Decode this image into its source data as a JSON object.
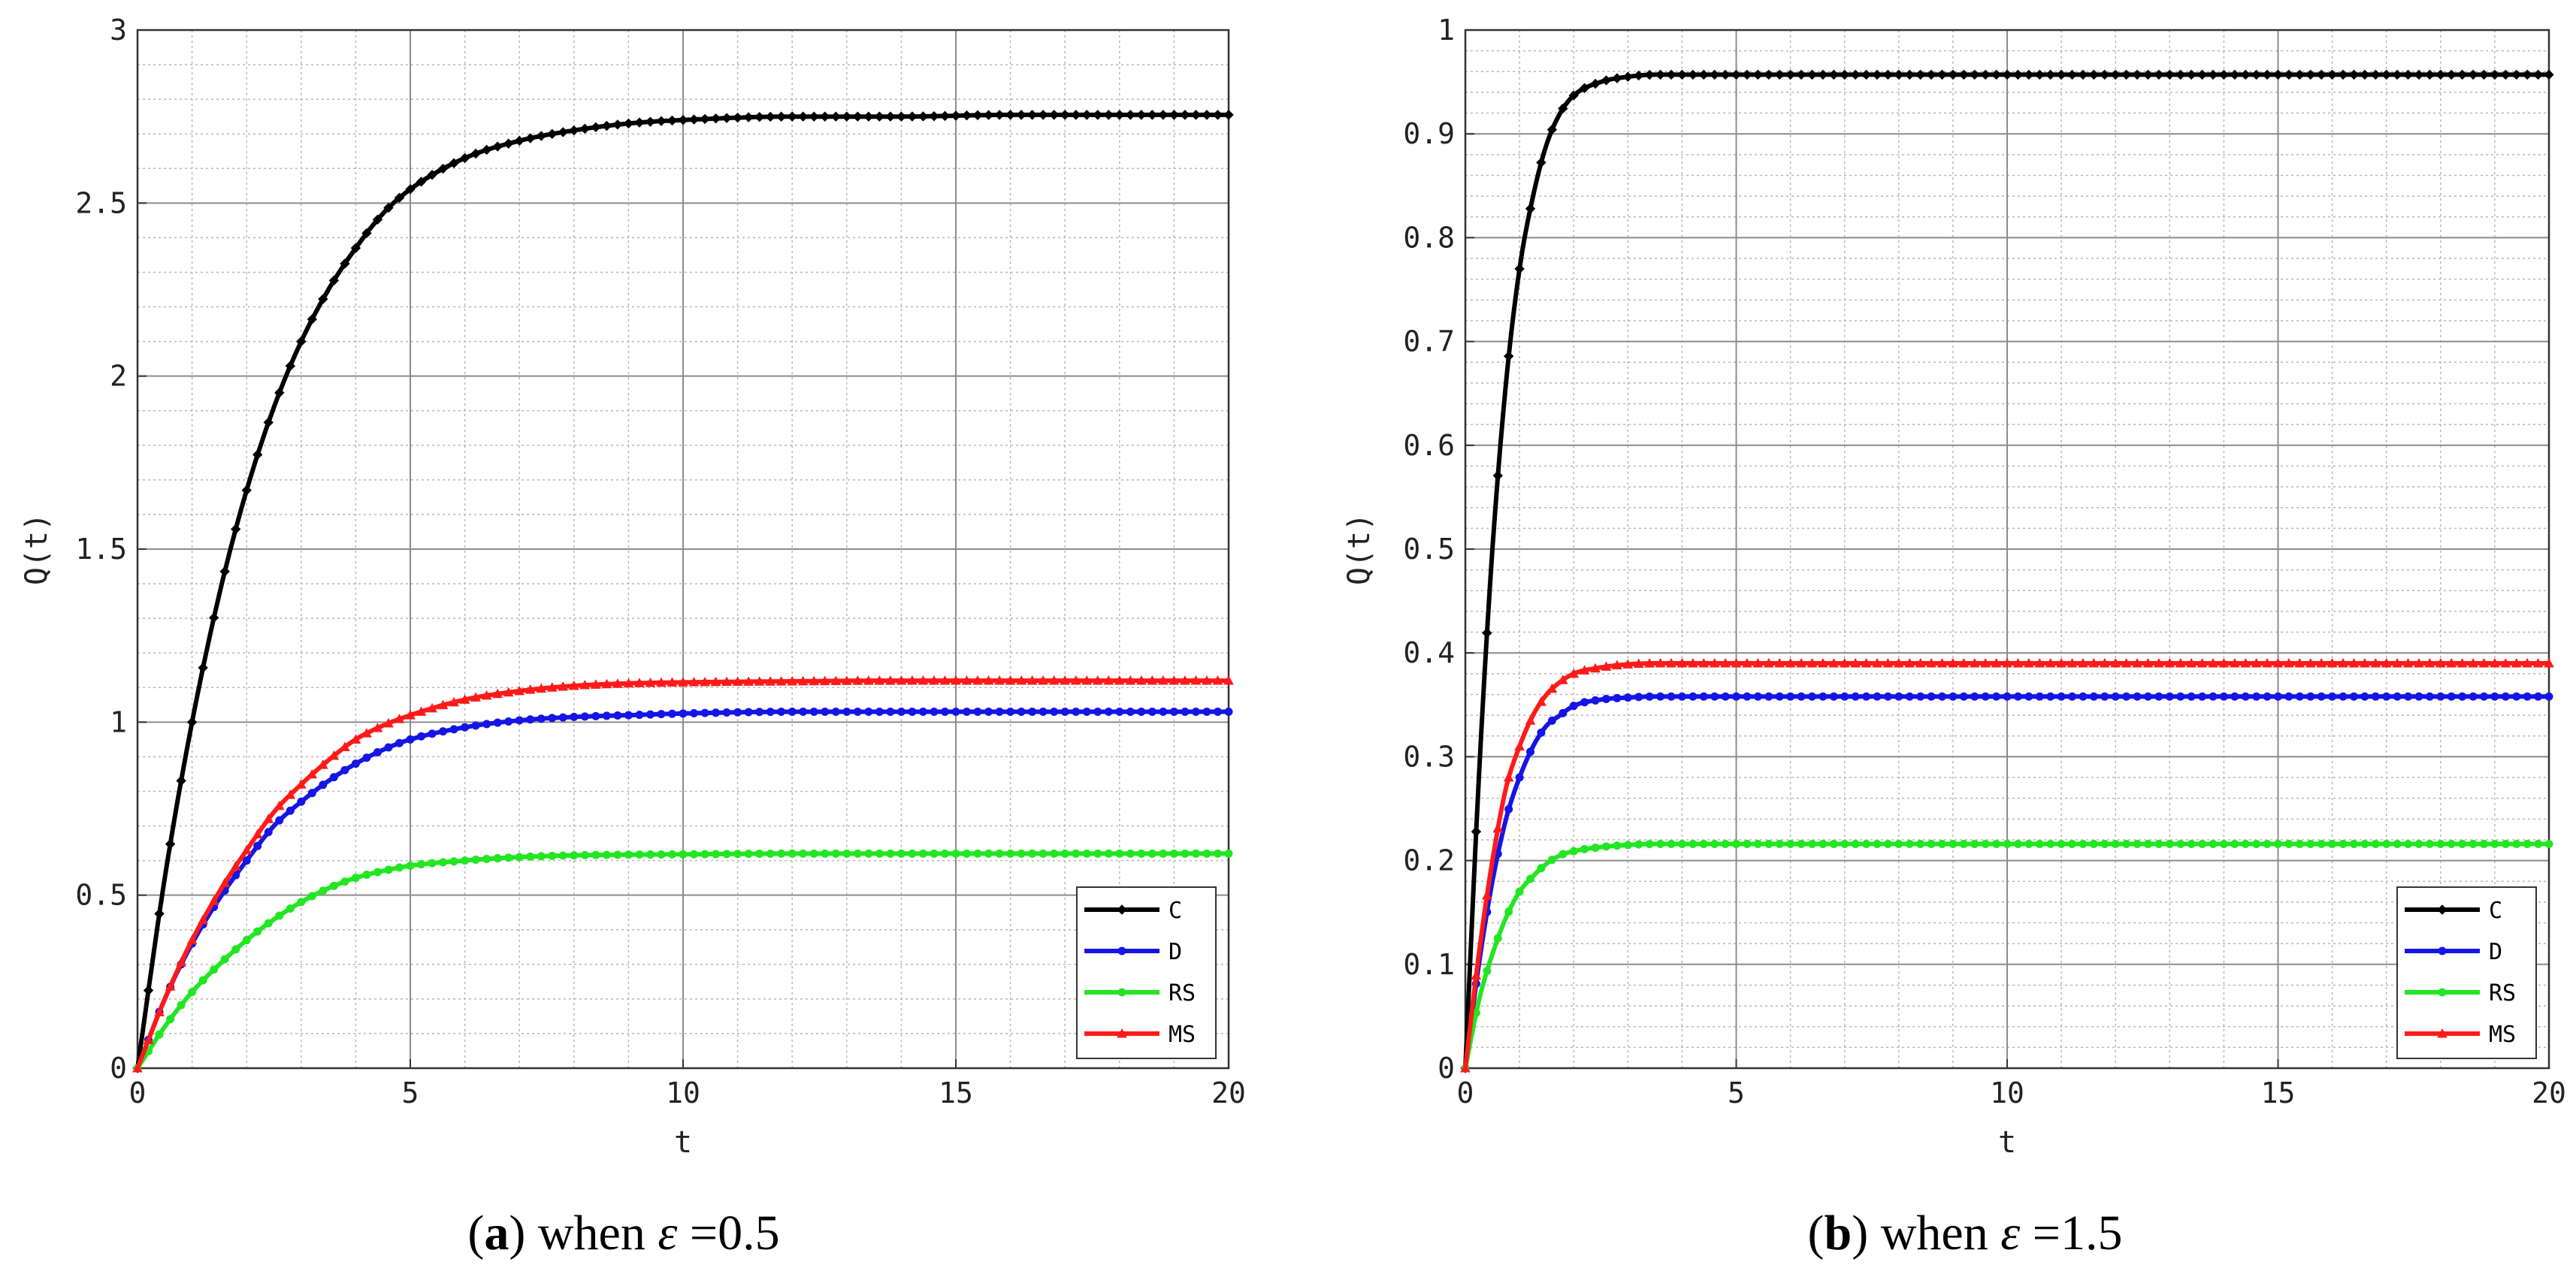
{
  "figure": {
    "captions": [
      {
        "paren_open": "(",
        "letter": "a",
        "paren_close": ")",
        "word": "when",
        "symbol": "ε",
        "value": "=0.5"
      },
      {
        "paren_open": "(",
        "letter": "b",
        "paren_close": ")",
        "word": "when",
        "symbol": "ε",
        "value": "=1.5"
      }
    ]
  },
  "chart_data": [
    {
      "type": "line",
      "title": "",
      "xlabel": "t",
      "ylabel": "Q(t)",
      "xlim": [
        0,
        20
      ],
      "ylim": [
        0,
        3
      ],
      "xticks": [
        0,
        5,
        10,
        15,
        20
      ],
      "xtick_labels": [
        "0",
        "5",
        "10",
        "15",
        "20"
      ],
      "yticks": [
        0,
        0.5,
        1,
        1.5,
        2,
        2.5,
        3
      ],
      "ytick_labels": [
        "0",
        "0.5",
        "1",
        "1.5",
        "2",
        "2.5",
        "3"
      ],
      "grid": true,
      "minor_grid": true,
      "legend_position": "bottom-right",
      "series": [
        {
          "name": "C",
          "color": "#000000",
          "marker": "diamond",
          "x": [
            0,
            0.5,
            1,
            1.5,
            2,
            2.5,
            3,
            3.5,
            4,
            4.5,
            5,
            6,
            7,
            8,
            9,
            10,
            12,
            14,
            16,
            18,
            20
          ],
          "y": [
            0,
            0.55,
            1,
            1.37,
            1.67,
            1.91,
            2.1,
            2.25,
            2.37,
            2.47,
            2.54,
            2.63,
            2.68,
            2.71,
            2.73,
            2.74,
            2.75,
            2.75,
            2.755,
            2.755,
            2.755
          ]
        },
        {
          "name": "D",
          "color": "#1515e6",
          "marker": "circle",
          "x": [
            0,
            0.5,
            1,
            1.5,
            2,
            2.5,
            3,
            3.5,
            4,
            4.5,
            5,
            6,
            7,
            8,
            9,
            10,
            12,
            14,
            16,
            18,
            20
          ],
          "y": [
            0,
            0.2,
            0.36,
            0.49,
            0.6,
            0.7,
            0.77,
            0.83,
            0.88,
            0.92,
            0.95,
            0.985,
            1.005,
            1.015,
            1.02,
            1.025,
            1.03,
            1.03,
            1.03,
            1.03,
            1.03
          ]
        },
        {
          "name": "RS",
          "color": "#22e622",
          "marker": "circle",
          "x": [
            0,
            0.5,
            1,
            1.5,
            2,
            2.5,
            3,
            3.5,
            4,
            4.5,
            5,
            6,
            7,
            8,
            9,
            10,
            12,
            14,
            16,
            18,
            20
          ],
          "y": [
            0,
            0.12,
            0.22,
            0.3,
            0.37,
            0.43,
            0.48,
            0.52,
            0.55,
            0.57,
            0.585,
            0.6,
            0.61,
            0.615,
            0.617,
            0.618,
            0.62,
            0.62,
            0.62,
            0.62,
            0.62
          ]
        },
        {
          "name": "MS",
          "color": "#ff1a1a",
          "marker": "triangle",
          "x": [
            0,
            0.5,
            1,
            1.5,
            2,
            2.5,
            3,
            3.5,
            4,
            4.5,
            5,
            6,
            7,
            8,
            9,
            10,
            12,
            14,
            16,
            18,
            20
          ],
          "y": [
            0,
            0.2,
            0.37,
            0.51,
            0.63,
            0.74,
            0.82,
            0.89,
            0.95,
            0.99,
            1.02,
            1.065,
            1.09,
            1.105,
            1.112,
            1.115,
            1.118,
            1.12,
            1.12,
            1.12,
            1.12
          ]
        }
      ]
    },
    {
      "type": "line",
      "title": "",
      "xlabel": "t",
      "ylabel": "Q(t)",
      "xlim": [
        0,
        20
      ],
      "ylim": [
        0,
        1
      ],
      "xticks": [
        0,
        5,
        10,
        15,
        20
      ],
      "xtick_labels": [
        "0",
        "5",
        "10",
        "15",
        "20"
      ],
      "yticks": [
        0,
        0.1,
        0.2,
        0.3,
        0.4,
        0.5,
        0.6,
        0.7,
        0.8,
        0.9,
        1
      ],
      "ytick_labels": [
        "0",
        "0.1",
        "0.2",
        "0.3",
        "0.4",
        "0.5",
        "0.6",
        "0.7",
        "0.8",
        "0.9",
        "1"
      ],
      "grid": true,
      "minor_grid": true,
      "legend_position": "bottom-right",
      "series": [
        {
          "name": "C",
          "color": "#000000",
          "marker": "diamond",
          "x": [
            0,
            0.25,
            0.5,
            0.75,
            1,
            1.25,
            1.5,
            1.75,
            2,
            2.5,
            3,
            3.5,
            4,
            5,
            6,
            8,
            10,
            12,
            14,
            16,
            18,
            20
          ],
          "y": [
            0,
            0.28,
            0.5,
            0.66,
            0.77,
            0.84,
            0.89,
            0.92,
            0.937,
            0.95,
            0.955,
            0.957,
            0.957,
            0.957,
            0.957,
            0.957,
            0.957,
            0.957,
            0.957,
            0.957,
            0.957,
            0.957
          ]
        },
        {
          "name": "D",
          "color": "#1515e6",
          "marker": "circle",
          "x": [
            0,
            0.25,
            0.5,
            0.75,
            1,
            1.25,
            1.5,
            1.75,
            2,
            2.5,
            3,
            3.5,
            4,
            5,
            6,
            8,
            10,
            12,
            14,
            16,
            18,
            20
          ],
          "y": [
            0,
            0.1,
            0.18,
            0.24,
            0.28,
            0.31,
            0.33,
            0.34,
            0.349,
            0.355,
            0.357,
            0.358,
            0.358,
            0.358,
            0.358,
            0.358,
            0.358,
            0.358,
            0.358,
            0.358,
            0.358,
            0.358
          ]
        },
        {
          "name": "RS",
          "color": "#22e622",
          "marker": "circle",
          "x": [
            0,
            0.25,
            0.5,
            0.75,
            1,
            1.25,
            1.5,
            1.75,
            2,
            2.5,
            3,
            3.5,
            4,
            5,
            6,
            8,
            10,
            12,
            14,
            16,
            18,
            20
          ],
          "y": [
            0,
            0.065,
            0.11,
            0.145,
            0.17,
            0.185,
            0.197,
            0.205,
            0.209,
            0.213,
            0.215,
            0.216,
            0.216,
            0.216,
            0.216,
            0.216,
            0.216,
            0.216,
            0.216,
            0.216,
            0.216,
            0.216
          ]
        },
        {
          "name": "MS",
          "color": "#ff1a1a",
          "marker": "triangle",
          "x": [
            0,
            0.25,
            0.5,
            0.75,
            1,
            1.25,
            1.5,
            1.75,
            2,
            2.5,
            3,
            3.5,
            4,
            5,
            6,
            8,
            10,
            12,
            14,
            16,
            18,
            20
          ],
          "y": [
            0,
            0.11,
            0.2,
            0.27,
            0.31,
            0.34,
            0.36,
            0.372,
            0.38,
            0.386,
            0.389,
            0.39,
            0.39,
            0.39,
            0.39,
            0.39,
            0.39,
            0.39,
            0.39,
            0.39,
            0.39,
            0.39
          ]
        }
      ]
    }
  ]
}
